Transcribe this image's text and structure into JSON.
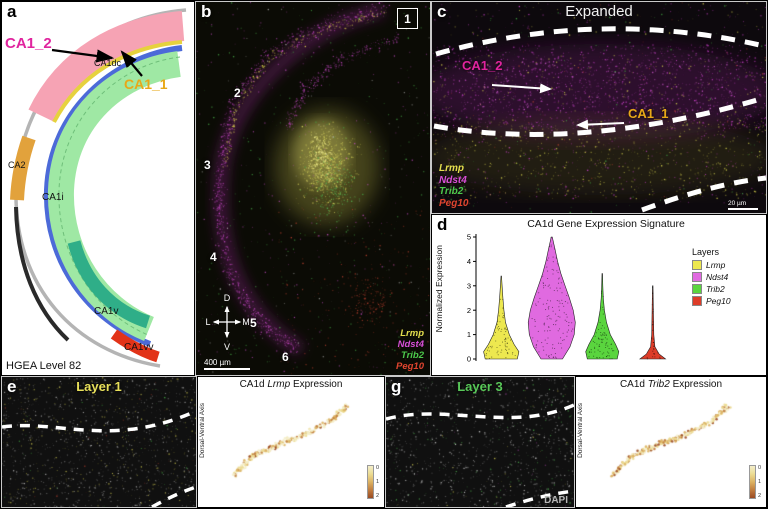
{
  "colors": {
    "lrmp": "#e3de4e",
    "ndst4": "#d84fd8",
    "trib2": "#4cc94c",
    "peg10": "#e0452f",
    "layer1_title": "#e8e05a",
    "layer3_title": "#58c858",
    "ca1_2": "#e0249e",
    "ca1_1": "#e8a818",
    "dapi": "#b9b9b9"
  },
  "panel_a": {
    "letter": "a",
    "ca1_2_label": "CA1_2",
    "ca1_1_label": "CA1_1",
    "region_labels": {
      "ca1dc": "CA1dc",
      "ca2": "CA2",
      "ca1i": "CA1i",
      "ca1v": "CA1v",
      "ca1vv": "CA1vv"
    },
    "footer": "HGEA Level 82"
  },
  "panel_b": {
    "letter": "b",
    "numbers": [
      "1",
      "2",
      "3",
      "4",
      "5",
      "6"
    ],
    "compass": {
      "up": "D",
      "down": "V",
      "left": "L",
      "right": "M"
    },
    "scale_bar": "400 µm",
    "legend": [
      {
        "gene": "Lrmp",
        "color": "#e3de4e"
      },
      {
        "gene": "Ndst4",
        "color": "#d84fd8"
      },
      {
        "gene": "Trib2",
        "color": "#4cc94c"
      },
      {
        "gene": "Peg10",
        "color": "#e0452f"
      }
    ]
  },
  "panel_c": {
    "letter": "c",
    "title": "Expanded",
    "ca1_2_label": "CA1_2",
    "ca1_1_label": "CA1_1",
    "legend": [
      {
        "gene": "Lrmp",
        "color": "#e3de4e"
      },
      {
        "gene": "Ndst4",
        "color": "#d84fd8"
      },
      {
        "gene": "Trib2",
        "color": "#4cc94c"
      },
      {
        "gene": "Peg10",
        "color": "#e0452f"
      }
    ],
    "scale_bar": "20 µm"
  },
  "panel_d": {
    "letter": "d"
  },
  "panel_e": {
    "letter": "e",
    "layer_title": "Layer 1",
    "chart_title_prefix": "CA1d ",
    "chart_gene": "Lrmp",
    "chart_title_suffix": " Expression",
    "ylabel": "Dorsal-Ventral Axis",
    "colorbar_ticks": [
      "0",
      "1",
      "2"
    ]
  },
  "panel_g": {
    "letter": "g",
    "layer_title": "Layer 3",
    "chart_title_prefix": "CA1d ",
    "chart_gene": "Trib2",
    "chart_title_suffix": " Expression",
    "ylabel": "Dorsal-Ventral Axis",
    "dapi_label": "DAPI",
    "colorbar_ticks": [
      "0",
      "1",
      "2"
    ]
  },
  "chart_data": [
    {
      "type": "violin",
      "title": "CA1d Gene Expression Signature",
      "ylabel": "Normalized Expression",
      "ylim": [
        0,
        5
      ],
      "yticks": [
        0,
        1,
        2,
        3,
        4,
        5
      ],
      "legend_title": "Layers",
      "legend_position": "right",
      "series": [
        {
          "name": "Lrmp",
          "color": "#ede84f",
          "profile": [
            [
              0,
              0.3
            ],
            [
              0.3,
              0.33
            ],
            [
              0.6,
              0.24
            ],
            [
              1,
              0.15
            ],
            [
              1.5,
              0.08
            ],
            [
              2,
              0.05
            ],
            [
              2.5,
              0.03
            ],
            [
              3,
              0.015
            ],
            [
              3.4,
              0.005
            ]
          ]
        },
        {
          "name": "Ndst4",
          "color": "#e06ae0",
          "profile": [
            [
              0,
              0.2
            ],
            [
              0.5,
              0.34
            ],
            [
              1,
              0.42
            ],
            [
              1.5,
              0.44
            ],
            [
              2,
              0.4
            ],
            [
              2.5,
              0.33
            ],
            [
              3,
              0.25
            ],
            [
              3.5,
              0.17
            ],
            [
              4,
              0.11
            ],
            [
              4.5,
              0.06
            ],
            [
              5,
              0.01
            ]
          ]
        },
        {
          "name": "Trib2",
          "color": "#5ad53e",
          "profile": [
            [
              0,
              0.28
            ],
            [
              0.3,
              0.31
            ],
            [
              0.6,
              0.25
            ],
            [
              1,
              0.15
            ],
            [
              1.5,
              0.08
            ],
            [
              2,
              0.04
            ],
            [
              2.5,
              0.02
            ],
            [
              3,
              0.01
            ],
            [
              3.5,
              0.005
            ]
          ]
        },
        {
          "name": "Peg10",
          "color": "#dd3c28",
          "profile": [
            [
              0,
              0.24
            ],
            [
              0.2,
              0.12
            ],
            [
              0.5,
              0.04
            ],
            [
              1,
              0.02
            ],
            [
              1.5,
              0.015
            ],
            [
              2,
              0.012
            ],
            [
              2.5,
              0.008
            ],
            [
              3,
              0.005
            ]
          ]
        }
      ]
    },
    {
      "type": "scatter",
      "title": "CA1d Lrmp Expression",
      "ylabel": "Dorsal-Ventral Axis",
      "n_points": 290,
      "curve": [
        [
          0.06,
          0.84
        ],
        [
          0.22,
          0.62
        ],
        [
          0.42,
          0.5
        ],
        [
          0.62,
          0.4
        ],
        [
          0.82,
          0.25
        ],
        [
          0.94,
          0.1
        ]
      ],
      "jitter": 0.022,
      "palette": [
        "#f4eecb",
        "#ecdc92",
        "#dcb263",
        "#c07c3e",
        "#9a4a22"
      ],
      "weights": [
        0.34,
        0.3,
        0.2,
        0.11,
        0.05
      ],
      "colorbar_ticks": [
        0,
        1,
        2
      ]
    },
    {
      "type": "scatter",
      "title": "CA1d Trib2 Expression",
      "ylabel": "Dorsal-Ventral Axis",
      "n_points": 290,
      "curve": [
        [
          0.06,
          0.84
        ],
        [
          0.22,
          0.62
        ],
        [
          0.42,
          0.5
        ],
        [
          0.62,
          0.4
        ],
        [
          0.82,
          0.25
        ],
        [
          0.94,
          0.1
        ]
      ],
      "jitter": 0.022,
      "palette": [
        "#f4eecb",
        "#ecdc92",
        "#dcb263",
        "#c07c3e",
        "#9a4a22"
      ],
      "weights": [
        0.27,
        0.3,
        0.24,
        0.13,
        0.06
      ],
      "colorbar_ticks": [
        0,
        1,
        2
      ]
    }
  ]
}
